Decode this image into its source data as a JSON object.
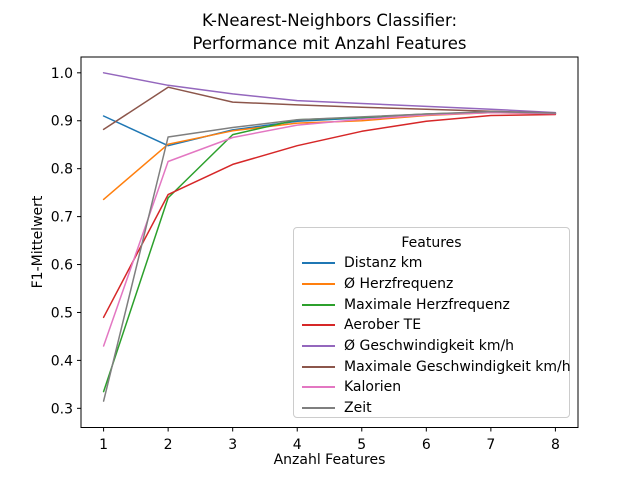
{
  "figure": {
    "title_line1": "K-Nearest-Neighbors Classifier:",
    "title_line2": "Performance mit Anzahl Features"
  },
  "chart_data": {
    "type": "line",
    "title": "K-Nearest-Neighbors Classifier:\nPerformance mit Anzahl Features",
    "xlabel": "Anzahl Features",
    "ylabel": "F1-Mittelwert",
    "x": [
      1,
      2,
      3,
      4,
      5,
      6,
      7,
      8
    ],
    "xticks": [
      1,
      2,
      3,
      4,
      5,
      6,
      7,
      8
    ],
    "yticks": [
      0.3,
      0.4,
      0.5,
      0.6,
      0.7,
      0.8,
      0.9,
      1.0
    ],
    "xlim": [
      0.65,
      8.35
    ],
    "ylim": [
      0.26,
      1.033
    ],
    "grid": false,
    "background": "#ffffff",
    "spine_color": "#000000",
    "line_width": 1.5,
    "legend": {
      "title": "Features",
      "position": "lower-right-inside",
      "frame_color": "#cccccc"
    },
    "series": [
      {
        "name": "Distanz km",
        "color": "#1f77b4",
        "values": [
          0.91,
          0.848,
          0.881,
          0.899,
          0.906,
          0.913,
          0.918,
          0.915
        ]
      },
      {
        "name": "Ø Herzfrequenz",
        "color": "#ff7f0e",
        "values": [
          0.736,
          0.851,
          0.879,
          0.895,
          0.9,
          0.911,
          0.917,
          0.915
        ]
      },
      {
        "name": "Maximale Herzfrequenz",
        "color": "#2ca02c",
        "values": [
          0.335,
          0.739,
          0.871,
          0.902,
          0.907,
          0.914,
          0.918,
          0.916
        ]
      },
      {
        "name": "Aerober TE",
        "color": "#d62728",
        "values": [
          0.49,
          0.746,
          0.809,
          0.848,
          0.878,
          0.899,
          0.911,
          0.913
        ]
      },
      {
        "name": "Ø Geschwindigkeit km/h",
        "color": "#9467bd",
        "values": [
          1.0,
          0.974,
          0.956,
          0.942,
          0.936,
          0.93,
          0.924,
          0.917
        ]
      },
      {
        "name": "Maximale Geschwindigkeit km/h",
        "color": "#8c564b",
        "values": [
          0.882,
          0.97,
          0.939,
          0.933,
          0.928,
          0.924,
          0.92,
          0.916
        ]
      },
      {
        "name": "Kalorien",
        "color": "#e377c2",
        "values": [
          0.43,
          0.815,
          0.865,
          0.891,
          0.903,
          0.912,
          0.917,
          0.915
        ]
      },
      {
        "name": "Zeit",
        "color": "#7f7f7f",
        "values": [
          0.315,
          0.866,
          0.886,
          0.902,
          0.908,
          0.914,
          0.919,
          0.916
        ]
      }
    ]
  }
}
